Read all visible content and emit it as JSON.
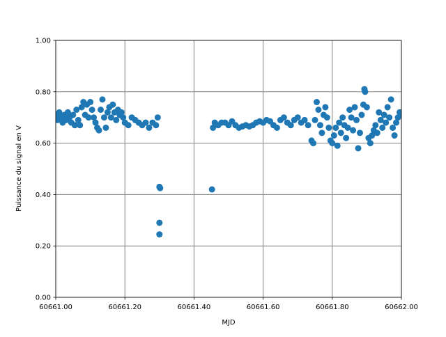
{
  "chart_data": {
    "type": "scatter",
    "xlabel": "MJD",
    "ylabel": "Puissance du signal en V",
    "color": "#1f77b4",
    "grid": true,
    "xlim": [
      60661,
      60662
    ],
    "ylim": [
      0,
      1
    ],
    "xticks": [
      {
        "value": 60661,
        "label": "60661.00"
      },
      {
        "value": 60661.2,
        "label": "60661.20"
      },
      {
        "value": 60661.4,
        "label": "60661.40"
      },
      {
        "value": 60661.6,
        "label": "60661.60"
      },
      {
        "value": 60661.8,
        "label": "60661.80"
      },
      {
        "value": 60662,
        "label": "60662.00"
      }
    ],
    "yticks": [
      {
        "value": 0,
        "label": "0.00"
      },
      {
        "value": 0.2,
        "label": "0.20"
      },
      {
        "value": 0.4,
        "label": "0.40"
      },
      {
        "value": 0.6,
        "label": "0.60"
      },
      {
        "value": 0.8,
        "label": "0.80"
      },
      {
        "value": 1,
        "label": "1.00"
      }
    ],
    "x": [
      60661.0,
      60661.005,
      60661.01,
      60661.015,
      60661.02,
      60661.025,
      60661.03,
      60661.035,
      60661.04,
      60661.045,
      60661.05,
      60661.055,
      60661.06,
      60661.065,
      60661.07,
      60661.075,
      60661.08,
      60661.085,
      60661.09,
      60661.095,
      60661.1,
      60661.105,
      60661.11,
      60661.115,
      60661.12,
      60661.125,
      60661.13,
      60661.135,
      60661.14,
      60661.145,
      60661.15,
      60661.155,
      60661.16,
      60661.165,
      60661.17,
      60661.175,
      60661.18,
      60661.185,
      60661.19,
      60661.195,
      60661.2,
      60661.21,
      60661.22,
      60661.23,
      60661.24,
      60661.25,
      60661.26,
      60661.27,
      60661.28,
      60661.29,
      60661.295,
      60661.3,
      60661.3,
      60661.3,
      60661.302,
      60661.452,
      60661.455,
      60661.46,
      60661.47,
      60661.48,
      60661.49,
      60661.5,
      60661.51,
      60661.52,
      60661.53,
      60661.54,
      60661.55,
      60661.56,
      60661.57,
      60661.58,
      60661.59,
      60661.6,
      60661.61,
      60661.62,
      60661.63,
      60661.64,
      60661.65,
      60661.66,
      60661.67,
      60661.68,
      60661.69,
      60661.7,
      60661.71,
      60661.72,
      60661.73,
      60661.74,
      60661.745,
      60661.75,
      60661.755,
      60661.76,
      60661.765,
      60661.77,
      60661.775,
      60661.78,
      60661.785,
      60661.79,
      60661.795,
      60661.8,
      60661.805,
      60661.81,
      60661.815,
      60661.82,
      60661.825,
      60661.83,
      60661.835,
      60661.84,
      60661.845,
      60661.85,
      60661.855,
      60661.86,
      60661.865,
      60661.87,
      60661.875,
      60661.88,
      60661.885,
      60661.89,
      60661.893,
      60661.895,
      60661.9,
      60661.905,
      60661.91,
      60661.915,
      60661.92,
      60661.925,
      60661.93,
      60661.935,
      60661.94,
      60661.945,
      60661.95,
      60661.955,
      60661.96,
      60661.965,
      60661.97,
      60661.975,
      60661.98,
      60661.985,
      60661.99,
      60661.995,
      60662.0
    ],
    "values": [
      0.71,
      0.69,
      0.72,
      0.7,
      0.68,
      0.71,
      0.69,
      0.72,
      0.7,
      0.68,
      0.71,
      0.67,
      0.73,
      0.69,
      0.67,
      0.74,
      0.76,
      0.71,
      0.75,
      0.7,
      0.76,
      0.73,
      0.7,
      0.68,
      0.66,
      0.65,
      0.73,
      0.77,
      0.7,
      0.66,
      0.72,
      0.74,
      0.7,
      0.75,
      0.72,
      0.69,
      0.73,
      0.71,
      0.72,
      0.7,
      0.68,
      0.67,
      0.7,
      0.69,
      0.68,
      0.67,
      0.68,
      0.66,
      0.68,
      0.67,
      0.7,
      0.43,
      0.29,
      0.245,
      0.425,
      0.42,
      0.66,
      0.68,
      0.67,
      0.68,
      0.68,
      0.67,
      0.685,
      0.67,
      0.66,
      0.665,
      0.67,
      0.665,
      0.67,
      0.68,
      0.685,
      0.68,
      0.69,
      0.685,
      0.67,
      0.66,
      0.69,
      0.7,
      0.68,
      0.67,
      0.69,
      0.7,
      0.68,
      0.69,
      0.67,
      0.61,
      0.6,
      0.69,
      0.76,
      0.73,
      0.67,
      0.64,
      0.71,
      0.74,
      0.7,
      0.66,
      0.61,
      0.6,
      0.63,
      0.66,
      0.59,
      0.68,
      0.64,
      0.7,
      0.67,
      0.62,
      0.66,
      0.73,
      0.7,
      0.65,
      0.74,
      0.69,
      0.58,
      0.64,
      0.71,
      0.75,
      0.81,
      0.8,
      0.74,
      0.62,
      0.6,
      0.63,
      0.65,
      0.67,
      0.64,
      0.72,
      0.69,
      0.66,
      0.71,
      0.68,
      0.74,
      0.7,
      0.77,
      0.66,
      0.63,
      0.68,
      0.7,
      0.72,
      0.71
    ]
  }
}
